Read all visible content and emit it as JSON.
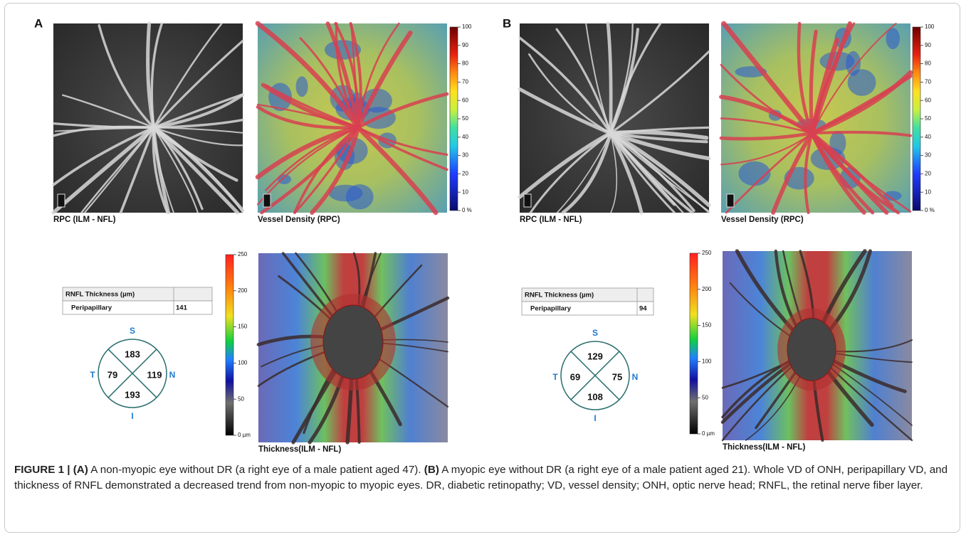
{
  "figure": {
    "panels": [
      {
        "label": "A",
        "rpc_caption": "RPC (ILM - NFL)",
        "vd_caption": "Vessel Density (RPC)",
        "vd_scale": {
          "ticks": [
            100,
            90,
            80,
            70,
            60,
            50,
            40,
            30,
            20,
            10,
            {
              "value": 0,
              "label": "0 %"
            }
          ]
        },
        "table": {
          "header": "RNFL Thickness (µm)",
          "row_label": "Peripapillary",
          "row_value": 141
        },
        "quadrants": [
          {
            "label": "S",
            "value": 183
          },
          {
            "label": "T",
            "value": 79
          },
          {
            "label": "N",
            "value": 119
          },
          {
            "label": "I",
            "value": 193
          }
        ],
        "thickness_scale": {
          "ticks": [
            250,
            200,
            150,
            100,
            50,
            {
              "value": 0,
              "label": "0 µm"
            }
          ]
        },
        "thickness_caption": "Thickness(ILM - NFL)"
      },
      {
        "label": "B",
        "rpc_caption": "RPC (ILM - NFL)",
        "vd_caption": "Vessel Density (RPC)",
        "vd_scale": {
          "ticks": [
            100,
            90,
            80,
            70,
            60,
            50,
            40,
            30,
            20,
            10,
            {
              "value": 0,
              "label": "0 %"
            }
          ]
        },
        "table": {
          "header": "RNFL Thickness (µm)",
          "row_label": "Peripapillary",
          "row_value": 94
        },
        "quadrants": [
          {
            "label": "S",
            "value": 129
          },
          {
            "label": "T",
            "value": 69
          },
          {
            "label": "N",
            "value": 75
          },
          {
            "label": "I",
            "value": 108
          }
        ],
        "thickness_scale": {
          "ticks": [
            250,
            200,
            150,
            100,
            50,
            {
              "value": 0,
              "label": "0 µm"
            }
          ]
        },
        "thickness_caption": "Thickness(ILM - NFL)"
      }
    ],
    "caption": {
      "lead": "FIGURE 1 |",
      "a_label": "(A)",
      "a_text": "A non-myopic eye without DR (a right eye of a male patient aged 47).",
      "b_label": "(B)",
      "b_text": "A myopic eye without DR (a right eye of a male patient aged 21). Whole VD of ONH, peripapillary VD, and thickness of RNFL demonstrated a decreased trend from non-myopic to myopic eyes. DR, diabetic retinopathy; VD, vessel density; ONH, optic nerve head; RNFL, the retinal nerve fiber layer."
    }
  }
}
